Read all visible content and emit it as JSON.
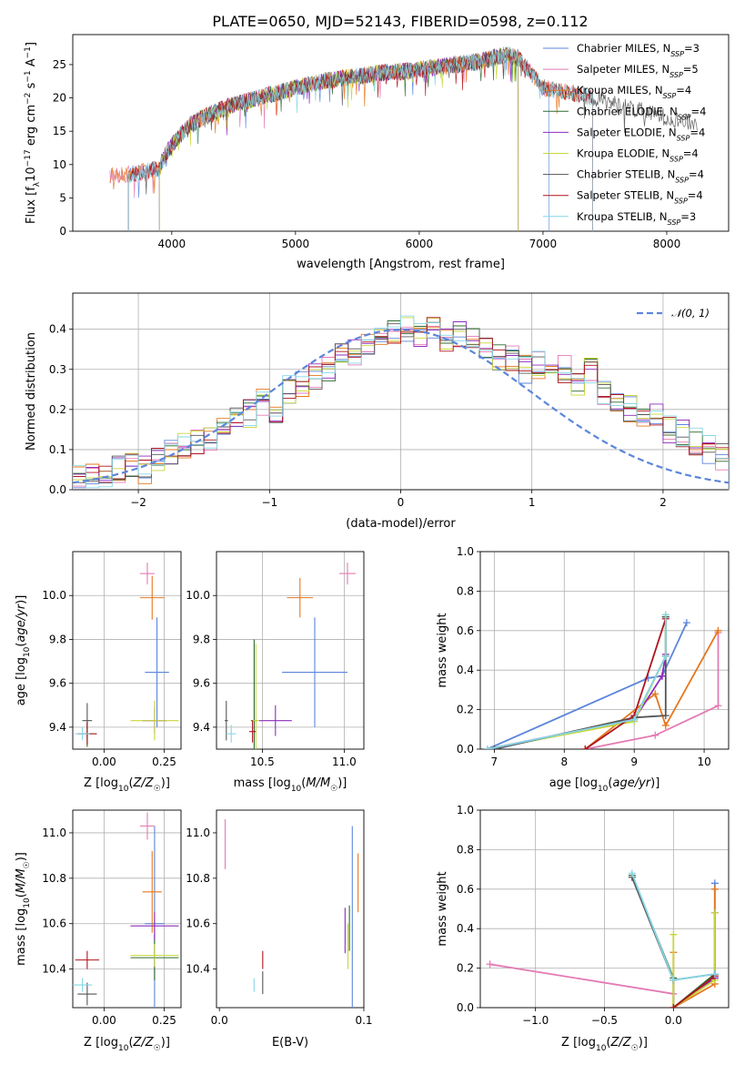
{
  "figure_title": "PLATE=0650, MJD=52143, FIBERID=0598, z=0.112",
  "colors": [
    "#5b86db",
    "#e37bb4",
    "#e6771f",
    "#2f6b2f",
    "#8e2bbf",
    "#c8d63a",
    "#555555",
    "#b0141e",
    "#86d6e6"
  ],
  "chart_data": [
    {
      "id": "spectrum",
      "type": "line",
      "title": "PLATE=0650, MJD=52143, FIBERID=0598, z=0.112",
      "xlabel": "wavelength [Angstrom, rest frame]",
      "ylabel": "Flux [f_λ 10^-17 erg cm^-2 s^-1 A^-1]",
      "xlim": [
        3200,
        8500
      ],
      "ylim": [
        0,
        29.5
      ],
      "xticks": [
        "4000",
        "5000",
        "6000",
        "7000",
        "8000"
      ],
      "yticks": [
        "0",
        "5",
        "10",
        "15",
        "20",
        "25"
      ],
      "grid": false,
      "legend_position": "right",
      "spectrum_envelope": {
        "x": [
          3650,
          3800,
          3900,
          3950,
          4000,
          4150,
          4300,
          4500,
          4700,
          4900,
          5100,
          5300,
          5500,
          5700,
          5900,
          6100,
          6300,
          6500,
          6700,
          6800,
          7000,
          7300,
          7600,
          7900,
          8250
        ],
        "y": [
          8.5,
          9.0,
          9.5,
          11.5,
          13.0,
          16.0,
          17.5,
          19.0,
          20.0,
          21.0,
          22.0,
          22.8,
          23.2,
          23.8,
          24.0,
          24.5,
          25.0,
          25.5,
          26.5,
          26.0,
          21.5,
          20.5,
          19.0,
          17.5,
          16.0
        ]
      },
      "series": [
        {
          "name": "Chabrier MILES, N_SSP=3",
          "label_main": "Chabrier MILES, N",
          "label_sub": "SSP",
          "label_tail": "=3",
          "color": "#5b86db",
          "x_start": 3650,
          "x_end": 7050
        },
        {
          "name": "Salpeter MILES, N_SSP=5",
          "label_main": "Salpeter MILES, N",
          "label_sub": "SSP",
          "label_tail": "=5",
          "color": "#e37bb4",
          "x_start": 3500,
          "x_end": 7400
        },
        {
          "name": "Kroupa MILES, N_SSP=4",
          "label_main": "Kroupa MILES, N",
          "label_sub": "SSP",
          "label_tail": "=4",
          "color": "#e6771f",
          "x_start": 3500,
          "x_end": 7400
        },
        {
          "name": "Chabrier ELODIE, N_SSP=4",
          "label_main": "Chabrier ELODIE, N",
          "label_sub": "SSP",
          "label_tail": "=4",
          "color": "#2f6b2f",
          "x_start": 3900,
          "x_end": 6800
        },
        {
          "name": "Salpeter ELODIE, N_SSP=4",
          "label_main": "Salpeter ELODIE, N",
          "label_sub": "SSP",
          "label_tail": "=4",
          "color": "#8e2bbf",
          "x_start": 3900,
          "x_end": 6800
        },
        {
          "name": "Kroupa ELODIE, N_SSP=4",
          "label_main": "Kroupa ELODIE, N",
          "label_sub": "SSP",
          "label_tail": "=4",
          "color": "#c8d63a",
          "x_start": 3900,
          "x_end": 6800
        },
        {
          "name": "Chabrier STELIB, N_SSP=4",
          "label_main": "Chabrier STELIB, N",
          "label_sub": "SSP",
          "label_tail": "=4",
          "color": "#555555",
          "x_start": 3650,
          "x_end": 8250
        },
        {
          "name": "Salpeter STELIB, N_SSP=4",
          "label_main": "Salpeter STELIB, N",
          "label_sub": "SSP",
          "label_tail": "=4",
          "color": "#b0141e",
          "x_start": 3650,
          "x_end": 7400
        },
        {
          "name": "Kroupa STELIB, N_SSP=3",
          "label_main": "Kroupa STELIB, N",
          "label_sub": "SSP",
          "label_tail": "=3",
          "color": "#86d6e6",
          "x_start": 3650,
          "x_end": 7400
        }
      ]
    },
    {
      "id": "residuals",
      "type": "bar",
      "subtype": "step-histogram",
      "xlabel": "(data-model)/error",
      "ylabel": "Normed distribution",
      "xlim": [
        -2.5,
        2.5
      ],
      "ylim": [
        0,
        0.49
      ],
      "xticks": [
        "−2",
        "−1",
        "0",
        "1",
        "2"
      ],
      "yticks": [
        "0.0",
        "0.1",
        "0.2",
        "0.3",
        "0.4"
      ],
      "grid": true,
      "legend_position": "top-right",
      "legend_label": "𝒩(0, 1)",
      "reference_curve": {
        "name": "N(0,1)",
        "mean": 0,
        "sigma": 1,
        "color": "#5b86db"
      },
      "bin_width": 0.1,
      "bin_start": -2.5,
      "hist_profile": [
        0.03,
        0.03,
        0.04,
        0.05,
        0.06,
        0.05,
        0.07,
        0.09,
        0.11,
        0.12,
        0.13,
        0.16,
        0.17,
        0.19,
        0.22,
        0.2,
        0.25,
        0.26,
        0.28,
        0.3,
        0.33,
        0.34,
        0.36,
        0.37,
        0.39,
        0.4,
        0.38,
        0.41,
        0.37,
        0.39,
        0.38,
        0.35,
        0.33,
        0.33,
        0.3,
        0.31,
        0.28,
        0.3,
        0.27,
        0.3,
        0.24,
        0.22,
        0.2,
        0.19,
        0.18,
        0.15,
        0.14,
        0.12,
        0.1,
        0.08
      ]
    },
    {
      "id": "age_vs_Z",
      "type": "scatter",
      "subtype": "errorbar",
      "xlabel": "Z [log10(Z/Z☉)]",
      "ylabel": "age [log10(age/yr)]",
      "xlim": [
        -0.13,
        0.32
      ],
      "ylim": [
        9.3,
        10.2
      ],
      "xticks": [
        "0.00",
        "0.25"
      ],
      "yticks": [
        "9.4",
        "9.6",
        "9.8",
        "10.0"
      ],
      "grid": true,
      "points": [
        {
          "x": 0.22,
          "y": 9.65,
          "xerr": 0.05,
          "yerr": 0.25,
          "color": "#5b86db"
        },
        {
          "x": 0.18,
          "y": 10.1,
          "xerr": 0.03,
          "yerr": 0.05,
          "color": "#e37bb4"
        },
        {
          "x": 0.2,
          "y": 9.99,
          "xerr": 0.05,
          "yerr": 0.1,
          "color": "#e6771f"
        },
        {
          "x": -0.07,
          "y": 9.37,
          "xerr": 0.04,
          "yerr": 0.06,
          "color": "#2f6b2f"
        },
        {
          "x": 0.21,
          "y": 9.43,
          "xerr": 0.05,
          "yerr": 0.06,
          "color": "#8e2bbf"
        },
        {
          "x": 0.21,
          "y": 9.43,
          "xerr": 0.1,
          "yerr": 0.09,
          "color": "#c8d63a"
        },
        {
          "x": -0.07,
          "y": 9.43,
          "xerr": 0.02,
          "yerr": 0.08,
          "color": "#555555"
        },
        {
          "x": -0.07,
          "y": 9.37,
          "xerr": 0.04,
          "yerr": 0.05,
          "color": "#b0141e"
        },
        {
          "x": -0.09,
          "y": 9.37,
          "xerr": 0.03,
          "yerr": 0.03,
          "color": "#86d6e6"
        }
      ]
    },
    {
      "id": "age_vs_mass",
      "type": "scatter",
      "subtype": "errorbar",
      "xlabel": "mass [log10(M/M☉)]",
      "ylabel": "",
      "xlim": [
        10.22,
        11.12
      ],
      "ylim": [
        9.3,
        10.2
      ],
      "xticks": [
        "10.5",
        "11.0"
      ],
      "yticks": [
        "9.4",
        "9.6",
        "9.8",
        "10.0"
      ],
      "grid": true,
      "points": [
        {
          "x": 10.82,
          "y": 9.65,
          "xerr": 0.2,
          "yerr": 0.25,
          "color": "#5b86db"
        },
        {
          "x": 11.02,
          "y": 10.1,
          "xerr": 0.05,
          "yerr": 0.05,
          "color": "#e37bb4"
        },
        {
          "x": 10.73,
          "y": 9.99,
          "xerr": 0.08,
          "yerr": 0.09,
          "color": "#e6771f"
        },
        {
          "x": 10.45,
          "y": 9.43,
          "xerr": 0.02,
          "yerr": 0.37,
          "color": "#2f6b2f"
        },
        {
          "x": 10.58,
          "y": 9.43,
          "xerr": 0.1,
          "yerr": 0.07,
          "color": "#8e2bbf"
        },
        {
          "x": 10.46,
          "y": 9.43,
          "xerr": 0.02,
          "yerr": 0.35,
          "color": "#c8d63a"
        },
        {
          "x": 10.28,
          "y": 9.43,
          "xerr": 0.01,
          "yerr": 0.09,
          "color": "#555555"
        },
        {
          "x": 10.44,
          "y": 9.38,
          "xerr": 0.02,
          "yerr": 0.05,
          "color": "#b0141e"
        },
        {
          "x": 10.31,
          "y": 9.37,
          "xerr": 0.03,
          "yerr": 0.04,
          "color": "#86d6e6"
        }
      ]
    },
    {
      "id": "mass_weight_vs_age",
      "type": "line",
      "xlabel": "age [log10(age/yr)]",
      "ylabel": "mass weight",
      "xlim": [
        6.8,
        10.35
      ],
      "ylim": [
        0,
        1
      ],
      "xticks": [
        "7",
        "8",
        "9",
        "10"
      ],
      "yticks": [
        "0.0",
        "0.2",
        "0.4",
        "0.6",
        "0.8",
        "1.0"
      ],
      "grid": true,
      "series": [
        {
          "color": "#5b86db",
          "x": [
            6.9,
            9.2,
            9.4,
            9.75
          ],
          "y": [
            0.0,
            0.36,
            0.37,
            0.64
          ]
        },
        {
          "color": "#e37bb4",
          "x": [
            8.3,
            9.3,
            10.2,
            10.2
          ],
          "y": [
            0.0,
            0.07,
            0.22,
            0.59
          ]
        },
        {
          "color": "#e6771f",
          "x": [
            8.3,
            9.3,
            9.45,
            10.2
          ],
          "y": [
            0.0,
            0.28,
            0.12,
            0.6
          ]
        },
        {
          "color": "#2f6b2f",
          "x": [
            6.9,
            9.0,
            9.45,
            9.45
          ],
          "y": [
            0.0,
            0.15,
            0.47,
            0.67
          ]
        },
        {
          "color": "#8e2bbf",
          "x": [
            6.9,
            9.0,
            9.4,
            9.45
          ],
          "y": [
            0.0,
            0.15,
            0.37,
            0.48
          ]
        },
        {
          "color": "#c8d63a",
          "x": [
            6.9,
            9.0,
            9.45,
            9.45
          ],
          "y": [
            0.0,
            0.14,
            0.47,
            0.68
          ]
        },
        {
          "color": "#555555",
          "x": [
            7.0,
            9.0,
            9.45,
            9.45
          ],
          "y": [
            0.0,
            0.16,
            0.17,
            0.67
          ]
        },
        {
          "color": "#b0141e",
          "x": [
            8.3,
            9.0,
            9.45
          ],
          "y": [
            0.0,
            0.17,
            0.66
          ]
        },
        {
          "color": "#86d6e6",
          "x": [
            6.9,
            9.0,
            9.45,
            9.45
          ],
          "y": [
            0.0,
            0.15,
            0.47,
            0.68
          ]
        }
      ]
    },
    {
      "id": "mass_vs_Z",
      "type": "scatter",
      "subtype": "errorbar",
      "xlabel": "Z [log10(Z/Z☉)]",
      "ylabel": "mass [log10(M/M☉)]",
      "xlim": [
        -0.13,
        0.32
      ],
      "ylim": [
        10.23,
        11.1
      ],
      "xticks": [
        "0.00",
        "0.25"
      ],
      "yticks": [
        "10.4",
        "10.6",
        "10.8",
        "11.0"
      ],
      "grid": true,
      "points": [
        {
          "x": 0.21,
          "y": 10.6,
          "xerr": 0.04,
          "yerr": 0.43,
          "color": "#5b86db"
        },
        {
          "x": 0.18,
          "y": 11.03,
          "xerr": 0.03,
          "yerr": 0.06,
          "color": "#e37bb4"
        },
        {
          "x": 0.2,
          "y": 10.74,
          "xerr": 0.04,
          "yerr": 0.18,
          "color": "#e6771f"
        },
        {
          "x": 0.21,
          "y": 10.45,
          "xerr": 0.1,
          "yerr": 0.1,
          "color": "#2f6b2f"
        },
        {
          "x": 0.21,
          "y": 10.59,
          "xerr": 0.1,
          "yerr": 0.06,
          "color": "#8e2bbf"
        },
        {
          "x": 0.21,
          "y": 10.46,
          "xerr": 0.1,
          "yerr": 0.05,
          "color": "#c8d63a"
        },
        {
          "x": -0.07,
          "y": 10.29,
          "xerr": 0.04,
          "yerr": 0.05,
          "color": "#555555"
        },
        {
          "x": -0.07,
          "y": 10.44,
          "xerr": 0.05,
          "yerr": 0.04,
          "color": "#b0141e"
        },
        {
          "x": -0.09,
          "y": 10.33,
          "xerr": 0.04,
          "yerr": 0.03,
          "color": "#86d6e6"
        }
      ]
    },
    {
      "id": "mass_vs_EBV",
      "type": "scatter",
      "subtype": "errorbar",
      "xlabel": "E(B-V)",
      "ylabel": "",
      "xlim": [
        -0.002,
        0.1
      ],
      "ylim": [
        10.23,
        11.1
      ],
      "xticks": [
        "0.0",
        "0.1"
      ],
      "yticks": [
        "10.4",
        "10.6",
        "10.8",
        "11.0"
      ],
      "grid": false,
      "points": [
        {
          "x": 0.092,
          "y": 10.6,
          "xerr": 0,
          "yerr": 0.43,
          "color": "#5b86db"
        },
        {
          "x": 0.004,
          "y": 10.95,
          "xerr": 0,
          "yerr": 0.11,
          "color": "#e37bb4"
        },
        {
          "x": 0.096,
          "y": 10.78,
          "xerr": 0,
          "yerr": 0.13,
          "color": "#e6771f"
        },
        {
          "x": 0.09,
          "y": 10.58,
          "xerr": 0,
          "yerr": 0.1,
          "color": "#2f6b2f"
        },
        {
          "x": 0.087,
          "y": 10.57,
          "xerr": 0,
          "yerr": 0.1,
          "color": "#8e2bbf"
        },
        {
          "x": 0.089,
          "y": 10.5,
          "xerr": 0,
          "yerr": 0.1,
          "color": "#c8d63a"
        },
        {
          "x": 0.03,
          "y": 10.34,
          "xerr": 0,
          "yerr": 0.05,
          "color": "#555555"
        },
        {
          "x": 0.03,
          "y": 10.44,
          "xerr": 0,
          "yerr": 0.04,
          "color": "#b0141e"
        },
        {
          "x": 0.024,
          "y": 10.33,
          "xerr": 0,
          "yerr": 0.03,
          "color": "#86d6e6"
        }
      ]
    },
    {
      "id": "mass_weight_vs_Z",
      "type": "line",
      "xlabel": "Z [log10(Z/Z☉)]",
      "ylabel": "mass weight",
      "xlim": [
        -1.4,
        0.4
      ],
      "ylim": [
        0,
        1
      ],
      "xticks": [
        "−1.0",
        "−0.5",
        "0.0"
      ],
      "yticks": [
        "0.0",
        "0.2",
        "0.4",
        "0.6",
        "0.8",
        "1.0"
      ],
      "grid": true,
      "series": [
        {
          "color": "#e37bb4",
          "x": [
            -1.33,
            0.0
          ],
          "y": [
            0.22,
            0.07
          ]
        },
        {
          "color": "#5b86db",
          "x": [
            0.0,
            0.3,
            0.3
          ],
          "y": [
            0.0,
            0.15,
            0.63
          ]
        },
        {
          "color": "#e6771f",
          "x": [
            0.0,
            0.0,
            0.3,
            0.3
          ],
          "y": [
            0.28,
            0.0,
            0.12,
            0.6
          ]
        },
        {
          "color": "#2f6b2f",
          "x": [
            -0.3,
            0.0,
            0.0,
            0.3
          ],
          "y": [
            0.67,
            0.15,
            0.0,
            0.17
          ]
        },
        {
          "color": "#8e2bbf",
          "x": [
            0.0,
            0.3,
            0.3
          ],
          "y": [
            0.0,
            0.15,
            0.48
          ]
        },
        {
          "color": "#c8d63a",
          "x": [
            0.0,
            0.0,
            0.3,
            0.3
          ],
          "y": [
            0.37,
            0.0,
            0.14,
            0.48
          ]
        },
        {
          "color": "#555555",
          "x": [
            -0.3,
            0.0,
            0.3
          ],
          "y": [
            0.66,
            0.14,
            0.17
          ]
        },
        {
          "color": "#b0141e",
          "x": [
            0.0,
            0.3
          ],
          "y": [
            0.0,
            0.16
          ]
        },
        {
          "color": "#86d6e6",
          "x": [
            -0.3,
            0.0,
            0.3
          ],
          "y": [
            0.68,
            0.14,
            0.17
          ]
        }
      ]
    }
  ]
}
